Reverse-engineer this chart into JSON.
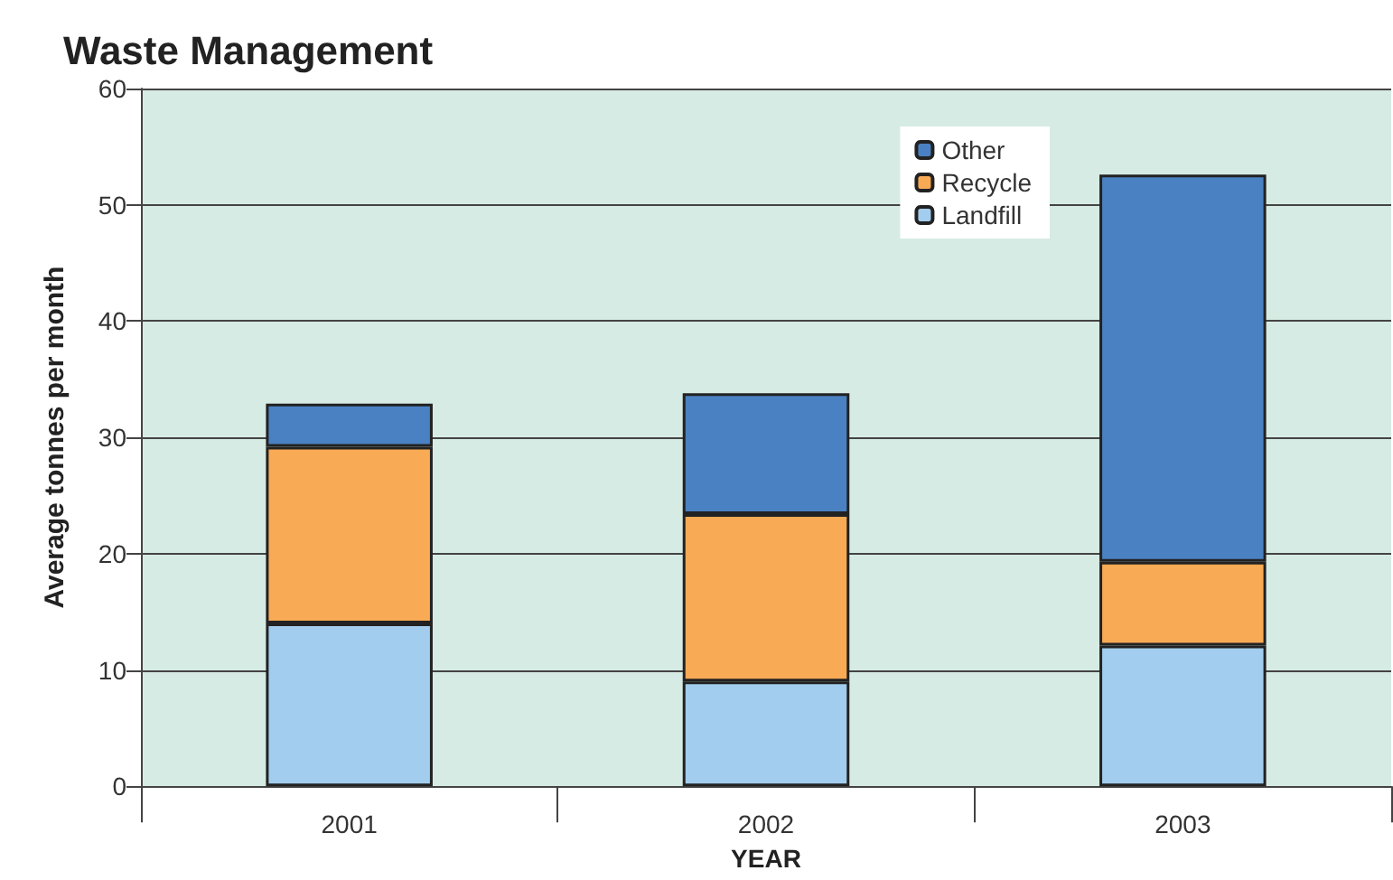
{
  "chart_data": {
    "type": "bar",
    "title": "Waste Management",
    "xlabel": "YEAR",
    "ylabel": "Average tonnes per month",
    "categories": [
      "2001",
      "2002",
      "2003"
    ],
    "stacked": true,
    "series": [
      {
        "name": "Landfill",
        "color": "#a2cdee",
        "values": [
          14,
          9,
          12.1
        ]
      },
      {
        "name": "Recycle",
        "color": "#f8aa55",
        "values": [
          15.2,
          14.4,
          7.2
        ]
      },
      {
        "name": "Other",
        "color": "#4a81c2",
        "values": [
          3.7,
          10.4,
          33.3
        ]
      }
    ],
    "ylim": [
      0,
      60
    ],
    "yticks": [
      0,
      10,
      20,
      30,
      40,
      50,
      60
    ],
    "grid": "y",
    "legend": "top right"
  }
}
